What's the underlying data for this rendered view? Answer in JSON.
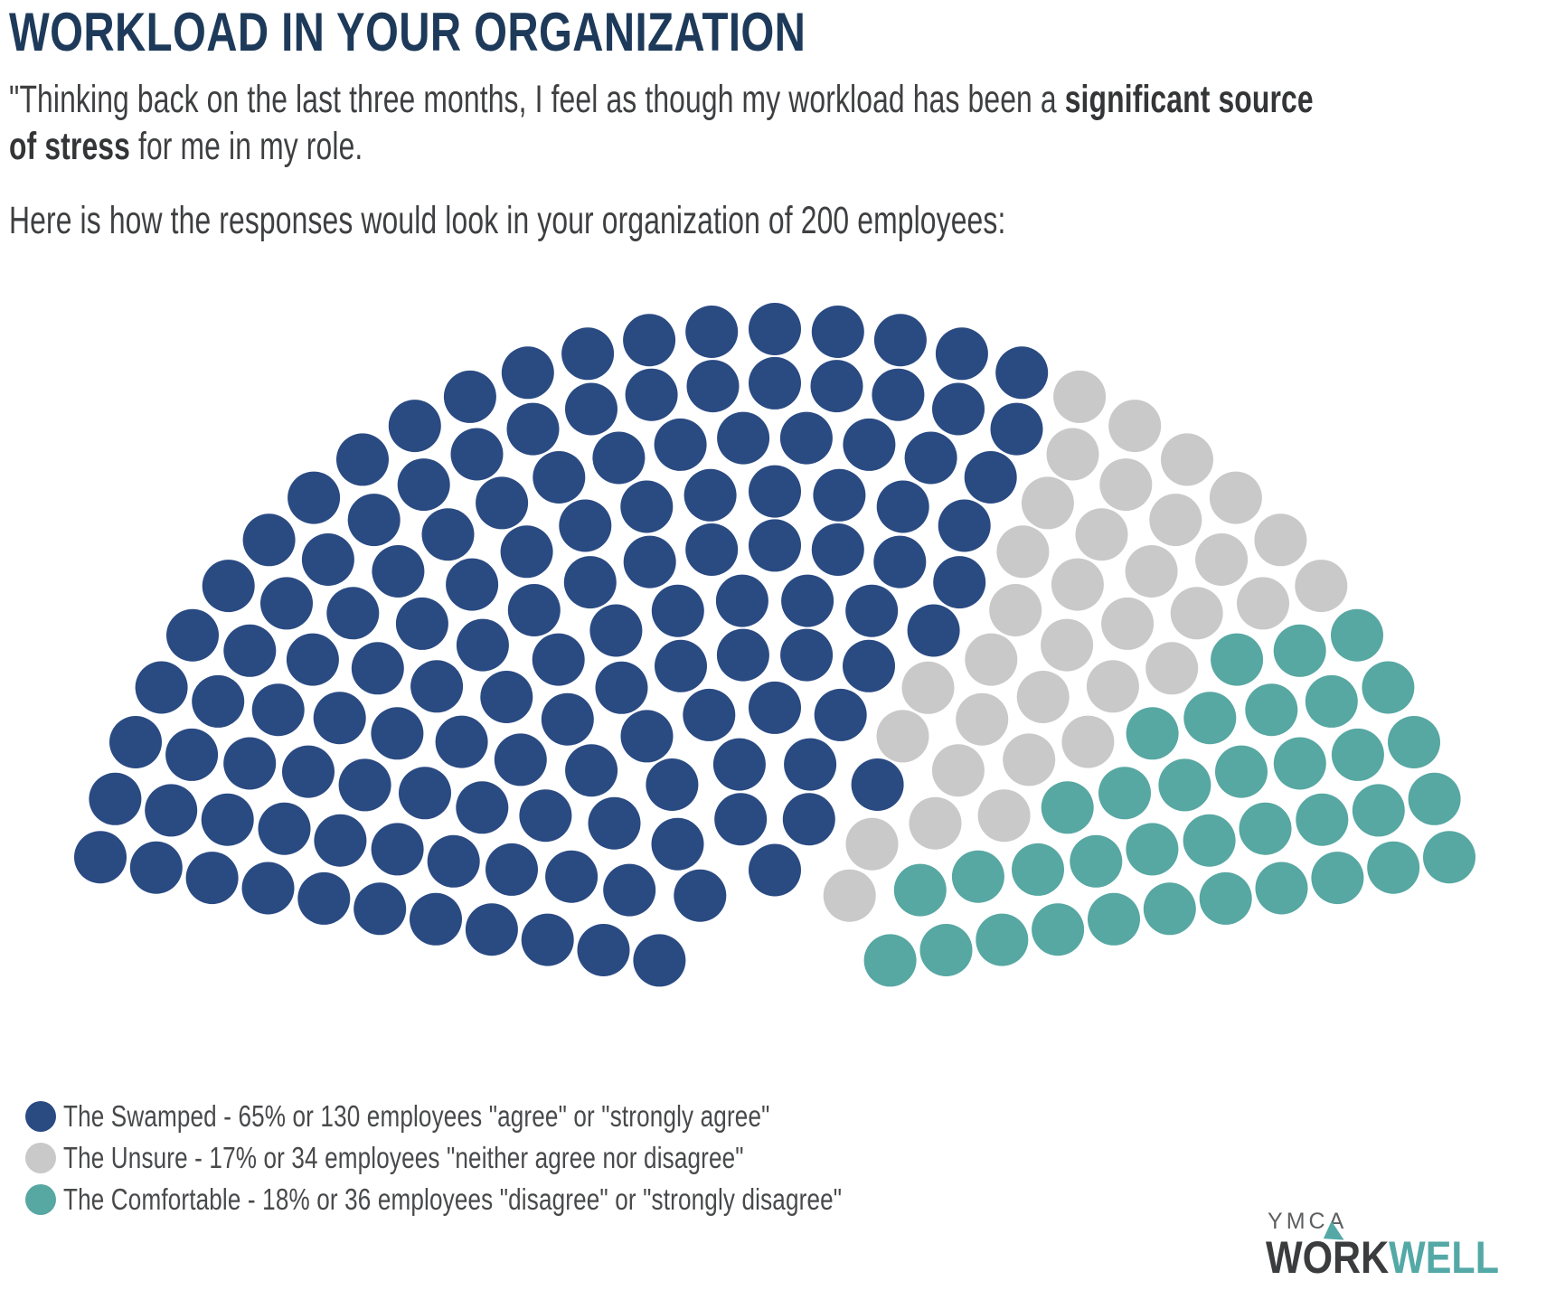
{
  "header": {
    "title": "WORKLOAD IN YOUR ORGANIZATION",
    "quote_prefix": "\"Thinking back on the last three months, I feel as though my workload has been a ",
    "quote_bold": "significant source of stress",
    "quote_suffix": " for me in my role.",
    "prompt": "Here is how the responses would look in your organization of 200 employees:"
  },
  "chart_data": {
    "type": "parliament-dot",
    "title": "Workload stress responses in an organization of 200 employees",
    "total_seats": 200,
    "unit": "employees",
    "legend_position": "bottom-left",
    "series": [
      {
        "name": "The Swamped",
        "percent": 65,
        "count": 130,
        "response": "\"agree\" or \"strongly agree\"",
        "color": "#2A4A82",
        "label": "The Swamped - 65% or 130 employees \"agree\" or \"strongly agree\""
      },
      {
        "name": "The Unsure",
        "percent": 17,
        "count": 34,
        "response": "\"neither agree nor disagree\"",
        "color": "#C9C9C9",
        "label": "The Unsure - 17% or 34 employees \"neither agree nor disagree\""
      },
      {
        "name": "The Comfortable",
        "percent": 18,
        "count": 36,
        "response": "\"disagree\" or \"strongly disagree\"",
        "color": "#57A7A2",
        "label": "The Comfortable - 18% or 36 employees \"disagree\" or \"strongly disagree\""
      }
    ]
  },
  "logo": {
    "brand_top": "YMCA",
    "brand_word_dark_1": "W",
    "brand_word_dark_o": "O",
    "brand_word_dark_2": "RK",
    "brand_word_accent": "WELL",
    "accent_color": "#54A9A7",
    "dark_color": "#3B3C3D"
  }
}
